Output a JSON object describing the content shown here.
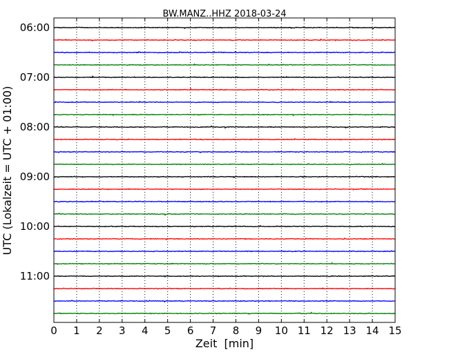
{
  "chart_data": {
    "type": "line",
    "title": "BW.MANZ..HHZ 2018-03-24",
    "xlabel": "Zeit  [min]",
    "ylabel": "UTC (Lokalzeit = UTC + 01:00)",
    "xlim": [
      0,
      15
    ],
    "x_ticks": [
      "0",
      "1",
      "2",
      "3",
      "4",
      "5",
      "6",
      "7",
      "8",
      "9",
      "10",
      "11",
      "12",
      "13",
      "14",
      "15"
    ],
    "y_ticks": [
      "06:00",
      "07:00",
      "08:00",
      "09:00",
      "10:00",
      "11:00"
    ],
    "y_tick_hours_utc": [
      6,
      7,
      8,
      9,
      10,
      11
    ],
    "trace_interval_min": 15,
    "first_trace_utc": "06:00",
    "last_trace_utc": "11:45",
    "traces_start_utc": [
      "06:00",
      "06:15",
      "06:30",
      "06:45",
      "07:00",
      "07:15",
      "07:30",
      "07:45",
      "08:00",
      "08:15",
      "08:30",
      "08:45",
      "09:00",
      "09:15",
      "09:30",
      "09:45",
      "10:00",
      "10:15",
      "10:30",
      "10:45",
      "11:00",
      "11:15",
      "11:30",
      "11:45"
    ],
    "trace_colors": [
      "#000000",
      "#ff0000",
      "#0000ff",
      "#007f00"
    ],
    "x_grid": "dotted vertical lines at each minute",
    "legend": "none"
  }
}
